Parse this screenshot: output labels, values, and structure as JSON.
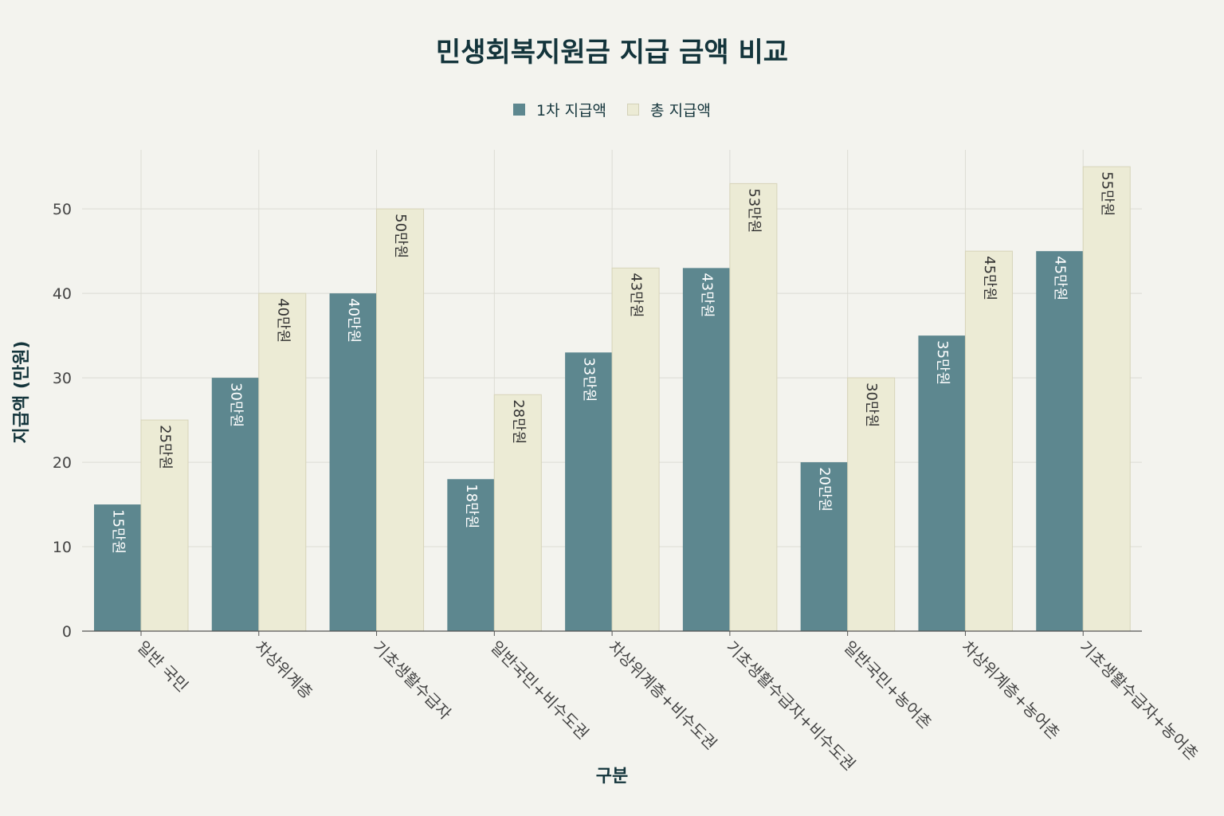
{
  "chart_data": {
    "type": "bar",
    "title": "민생회복지원금 지급 금액 비교",
    "xlabel": "구분",
    "ylabel": "지급액 (만원)",
    "ylim": [
      0,
      57
    ],
    "yticks": [
      0,
      10,
      20,
      30,
      40,
      50
    ],
    "grid": true,
    "legend_position": "top-center",
    "categories": [
      "일반 국민",
      "차상위계층",
      "기초생활수급자",
      "일반국민+비수도권",
      "차상위계층+비수도권",
      "기초생활수급자+비수도권",
      "일반국민+농어촌",
      "차상위계층+농어촌",
      "기초생활수급자+농어촌"
    ],
    "series": [
      {
        "name": "1차 지급액",
        "color": "#5d878f",
        "values": [
          15,
          30,
          40,
          18,
          33,
          43,
          20,
          35,
          45
        ],
        "labels": [
          "15만원",
          "30만원",
          "40만원",
          "18만원",
          "33만원",
          "43만원",
          "20만원",
          "35만원",
          "45만원"
        ]
      },
      {
        "name": "총 지급액",
        "color": "#ecebd5",
        "values": [
          25,
          40,
          50,
          28,
          43,
          53,
          30,
          45,
          55
        ],
        "labels": [
          "25만원",
          "40만원",
          "50만원",
          "28만원",
          "43만원",
          "53만원",
          "30만원",
          "45만원",
          "55만원"
        ]
      }
    ]
  }
}
